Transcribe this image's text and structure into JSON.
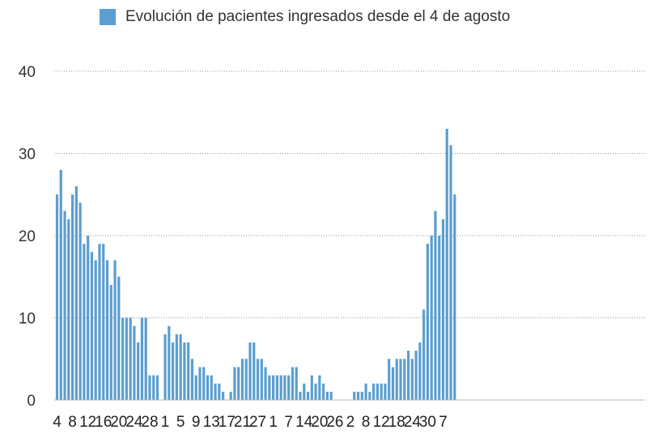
{
  "chart_data": {
    "type": "bar",
    "legend": [
      "Evolución de pacientes ingresados desde el 4 de agosto"
    ],
    "legend_position": "top",
    "grid": true,
    "ylim": [
      0,
      40
    ],
    "yticks": [
      0,
      10,
      20,
      30,
      40
    ],
    "xtick_labels": [
      "4",
      "8",
      "12",
      "16",
      "20",
      "24",
      "28",
      "1",
      "5",
      "9",
      "13",
      "17",
      "21",
      "27",
      "1",
      "7",
      "14",
      "20",
      "26",
      "2",
      "8",
      "12",
      "18",
      "24",
      "30",
      "7"
    ],
    "bar_color": "#5B9ECF",
    "series": [
      {
        "values": [
          25,
          28,
          23,
          22,
          25,
          26,
          24,
          19,
          20,
          18,
          17,
          19,
          19,
          17,
          14,
          17,
          15,
          10,
          10,
          10,
          9,
          7,
          10,
          10,
          3,
          3,
          3,
          0,
          8,
          9,
          7,
          8,
          8,
          7,
          7,
          5,
          3,
          4,
          4,
          3,
          3,
          2,
          2,
          1,
          0,
          1,
          4,
          4,
          5,
          5,
          7,
          7,
          5,
          5,
          4,
          3,
          3,
          3,
          3,
          3,
          3,
          4,
          4,
          1,
          2,
          1,
          3,
          2,
          3,
          2,
          1,
          1,
          0,
          0,
          0,
          0,
          0,
          1,
          1,
          1,
          2,
          1,
          2,
          2,
          2,
          2,
          5,
          4,
          5,
          5,
          5,
          6,
          5,
          6,
          7,
          11,
          19,
          20,
          23,
          20,
          22,
          33,
          31,
          25
        ]
      }
    ]
  }
}
